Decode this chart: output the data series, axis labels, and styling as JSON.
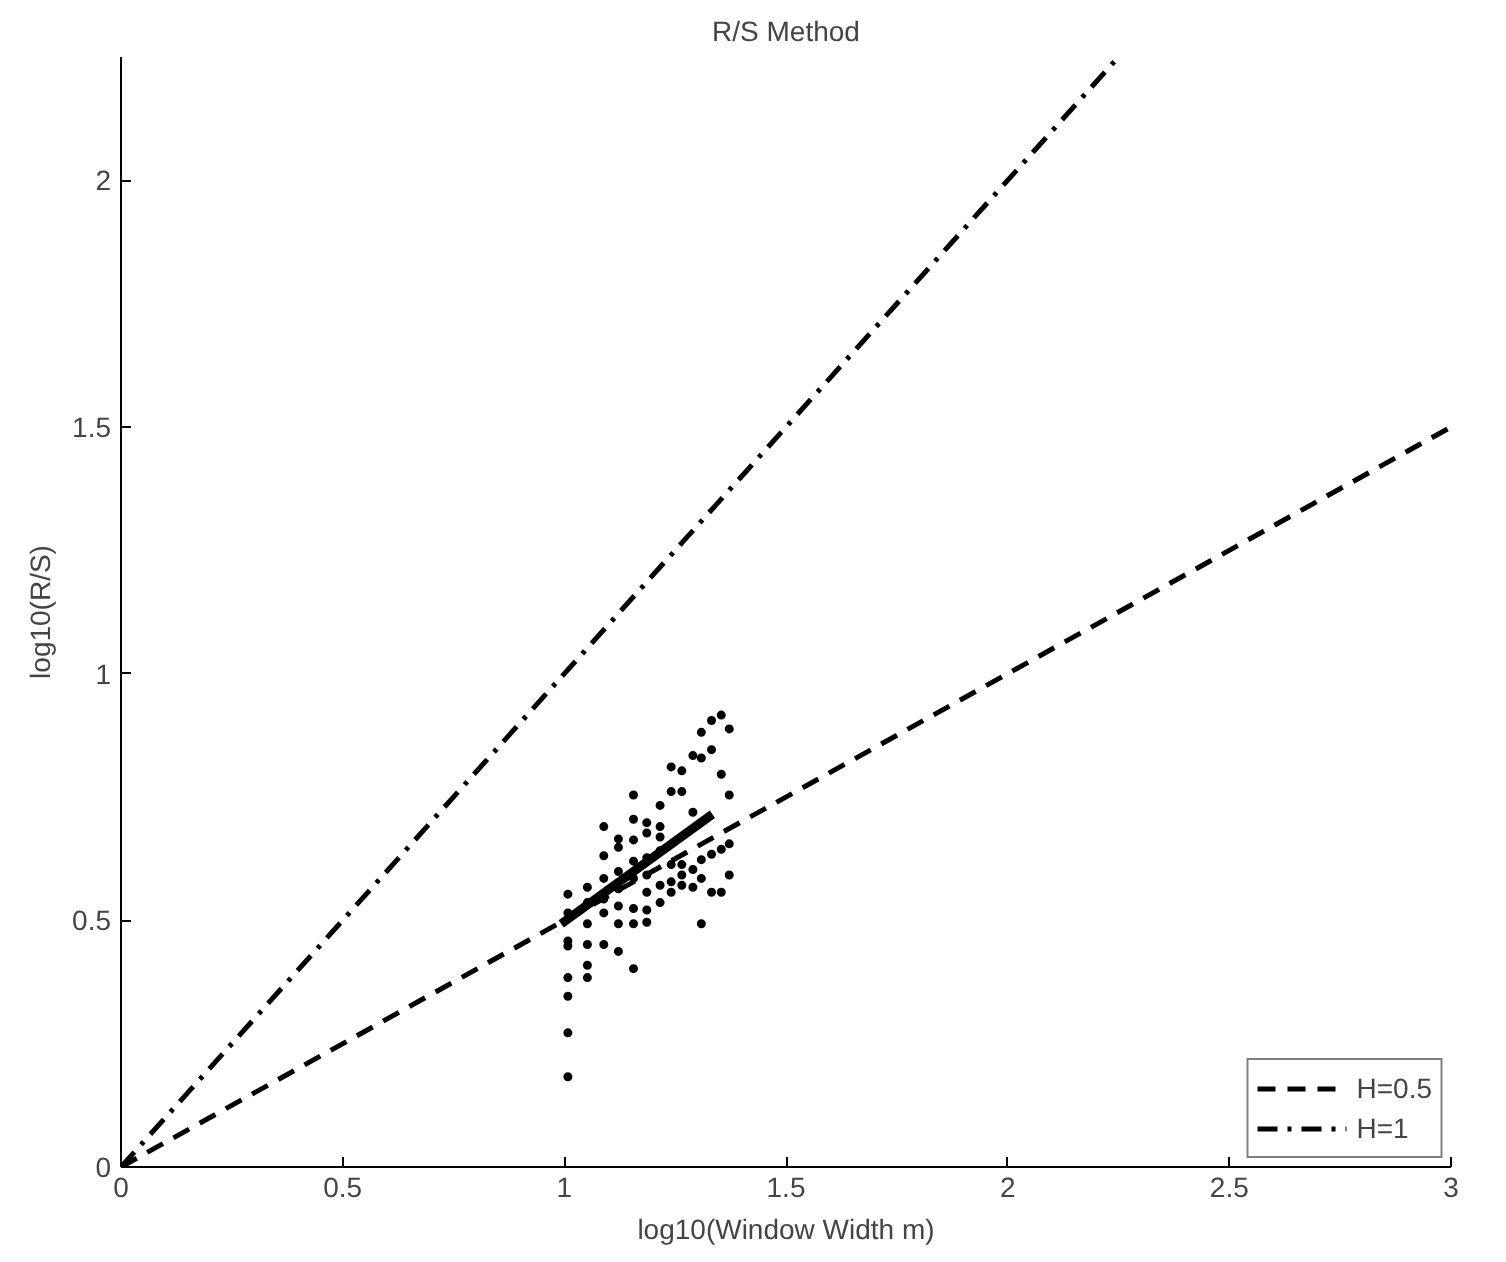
{
  "chart_data": {
    "type": "scatter",
    "title": "R/S Method",
    "xlabel": "log10(Window Width m)",
    "ylabel": "log10(R/S)",
    "xlim": [
      0,
      3
    ],
    "ylim": [
      0,
      2.25
    ],
    "xticks": [
      0,
      0.5,
      1,
      1.5,
      2,
      2.5,
      3
    ],
    "yticks": [
      0,
      0.5,
      1,
      1.5,
      2
    ],
    "grid": false,
    "legend": "bottom right",
    "series": [
      {
        "marker": "circle",
        "color": "#000000",
        "x": [
          1.008,
          1.008,
          1.008,
          1.008,
          1.008,
          1.008,
          1.008,
          1.008,
          1.052,
          1.052,
          1.052,
          1.052,
          1.052,
          1.052,
          1.089,
          1.089,
          1.089,
          1.089,
          1.089,
          1.089,
          1.122,
          1.122,
          1.122,
          1.122,
          1.122,
          1.122,
          1.122,
          1.156,
          1.156,
          1.156,
          1.156,
          1.156,
          1.156,
          1.156,
          1.156,
          1.186,
          1.186,
          1.186,
          1.186,
          1.186,
          1.186,
          1.186,
          1.216,
          1.216,
          1.216,
          1.216,
          1.216,
          1.216,
          1.241,
          1.241,
          1.241,
          1.241,
          1.241,
          1.265,
          1.265,
          1.265,
          1.265,
          1.265,
          1.29,
          1.29,
          1.29,
          1.29,
          1.309,
          1.309,
          1.309,
          1.309,
          1.309,
          1.332,
          1.332,
          1.332,
          1.332,
          1.354,
          1.354,
          1.354,
          1.354,
          1.372,
          1.372,
          1.372,
          1.372
        ],
        "values": [
          0.553,
          0.515,
          0.458,
          0.448,
          0.384,
          0.346,
          0.272,
          0.183,
          0.567,
          0.536,
          0.493,
          0.451,
          0.409,
          0.384,
          0.69,
          0.631,
          0.585,
          0.543,
          0.515,
          0.451,
          0.665,
          0.648,
          0.599,
          0.564,
          0.529,
          0.493,
          0.437,
          0.754,
          0.705,
          0.663,
          0.62,
          0.585,
          0.524,
          0.493,
          0.402,
          0.698,
          0.677,
          0.627,
          0.592,
          0.557,
          0.521,
          0.496,
          0.733,
          0.69,
          0.669,
          0.641,
          0.571,
          0.536,
          0.811,
          0.761,
          0.613,
          0.578,
          0.557,
          0.803,
          0.761,
          0.613,
          0.592,
          0.571,
          0.834,
          0.719,
          0.603,
          0.567,
          0.881,
          0.829,
          0.623,
          0.585,
          0.493,
          0.905,
          0.846,
          0.634,
          0.557,
          0.916,
          0.796,
          0.644,
          0.557,
          0.888,
          0.754,
          0.655,
          0.592
        ]
      },
      {
        "type": "line",
        "line_style": "solid",
        "color": "#000000",
        "x": [
          0.993,
          1.334
        ],
        "values": [
          0.493,
          0.715
        ]
      },
      {
        "type": "line",
        "name": "H=0.5",
        "line_style": "dashed",
        "color": "#000000",
        "x": [
          0,
          3
        ],
        "values": [
          0,
          1.5
        ]
      },
      {
        "type": "line",
        "name": "H=1",
        "line_style": "dashdot",
        "color": "#000000",
        "x": [
          0,
          2.25
        ],
        "values": [
          0,
          2.25
        ]
      }
    ]
  }
}
